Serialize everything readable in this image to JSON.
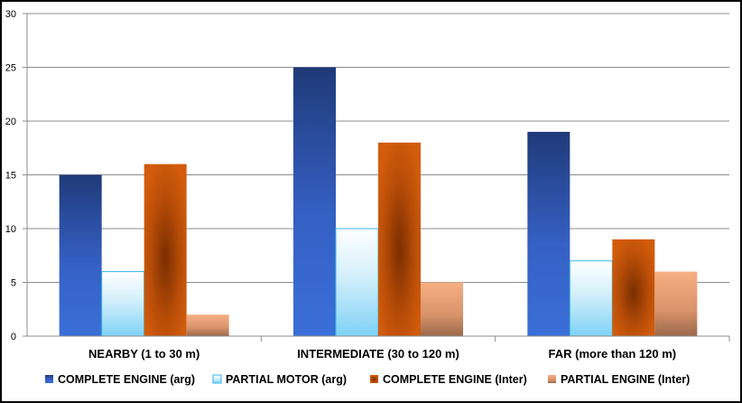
{
  "chart_data": {
    "type": "bar",
    "categories": [
      "NEARBY (1 to 30 m)",
      "INTERMEDIATE (30 to 120 m)",
      "FAR (more than 120 m)"
    ],
    "series": [
      {
        "name": "COMPLETE ENGINE (arg)",
        "values": [
          15,
          25,
          19
        ],
        "color": "#2e5bb5"
      },
      {
        "name": "PARTIAL MOTOR (arg)",
        "values": [
          6,
          10,
          7
        ],
        "color": "#9fdcf5"
      },
      {
        "name": "COMPLETE ENGINE (Inter)",
        "values": [
          16,
          18,
          9
        ],
        "color": "#c2560a"
      },
      {
        "name": "PARTIAL ENGINE (Inter)",
        "values": [
          2,
          5,
          6
        ],
        "color": "#e8a070"
      }
    ],
    "ylim": [
      0,
      30
    ],
    "yticks": [
      0,
      5,
      10,
      15,
      20,
      25,
      30
    ],
    "grid": true,
    "legend": "bottom"
  }
}
